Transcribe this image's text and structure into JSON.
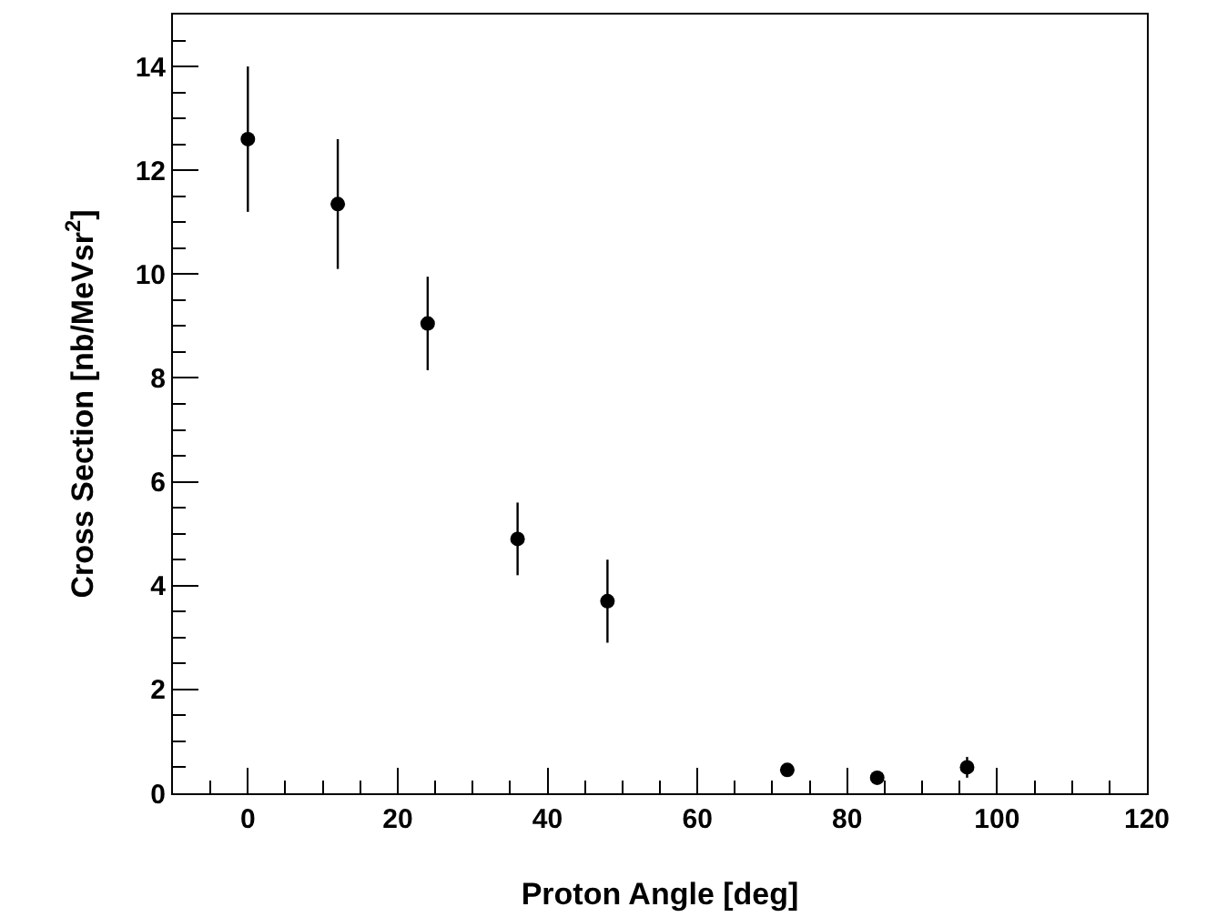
{
  "chart_data": {
    "type": "scatter",
    "xlabel": "Proton Angle [deg]",
    "ylabel": "Cross Section [nb/MeVsr$^{2}$]",
    "x": [
      0,
      12,
      24,
      36,
      48,
      72,
      84,
      96
    ],
    "series": [
      {
        "color": "#000000",
        "values": [
          12.6,
          11.35,
          9.05,
          4.9,
          3.7,
          0.45,
          0.3,
          0.5
        ],
        "errors": [
          1.4,
          1.25,
          0.9,
          0.7,
          0.8,
          null,
          null,
          0.2
        ]
      }
    ],
    "xlim": [
      -10,
      120
    ],
    "xticks": [
      0,
      20,
      40,
      60,
      80,
      100,
      120
    ],
    "ylim": [
      0,
      15
    ],
    "yticks": [
      0,
      2,
      4,
      6,
      8,
      10,
      12,
      14
    ],
    "marker": "circle",
    "grid": false
  }
}
